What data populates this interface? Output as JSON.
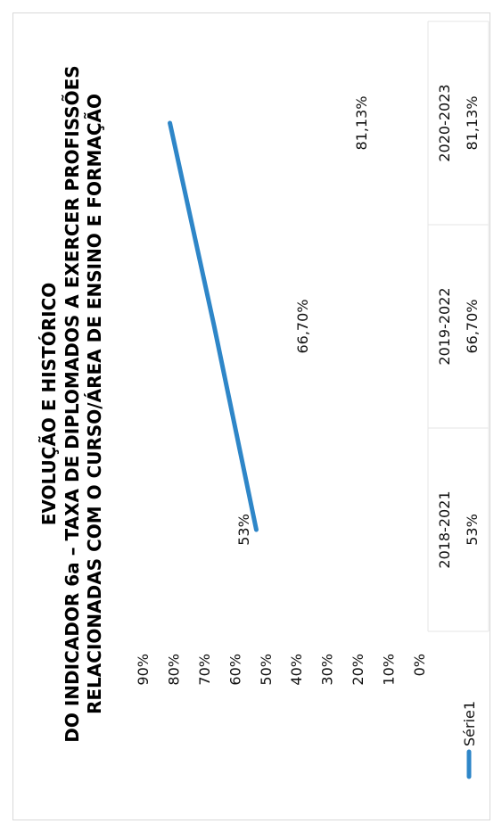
{
  "chart_data": {
    "type": "line",
    "title_lines": [
      "EVOLUÇÃO E HISTÓRICO",
      "DO INDICADOR 6a – TAXA DE DIPLOMADOS A EXERCER PROFISSÕES",
      "RELACIONADAS COM O CURSO/ÁREA DE ENSINO E FORMAÇÃO"
    ],
    "categories": [
      "2018-2021",
      "2019-2022",
      "2020-2023"
    ],
    "y_ticks": [
      "90%",
      "80%",
      "70%",
      "60%",
      "50%",
      "40%",
      "30%",
      "20%",
      "10%",
      "0%"
    ],
    "ylim": [
      0,
      90
    ],
    "series": [
      {
        "name": "Série1",
        "values": [
          53,
          66.7,
          81.13
        ],
        "labels": [
          "53%",
          "66,70%",
          "81,13%"
        ],
        "color": "#2e86c8"
      }
    ],
    "data_table": true,
    "legend": "bottom-left"
  }
}
